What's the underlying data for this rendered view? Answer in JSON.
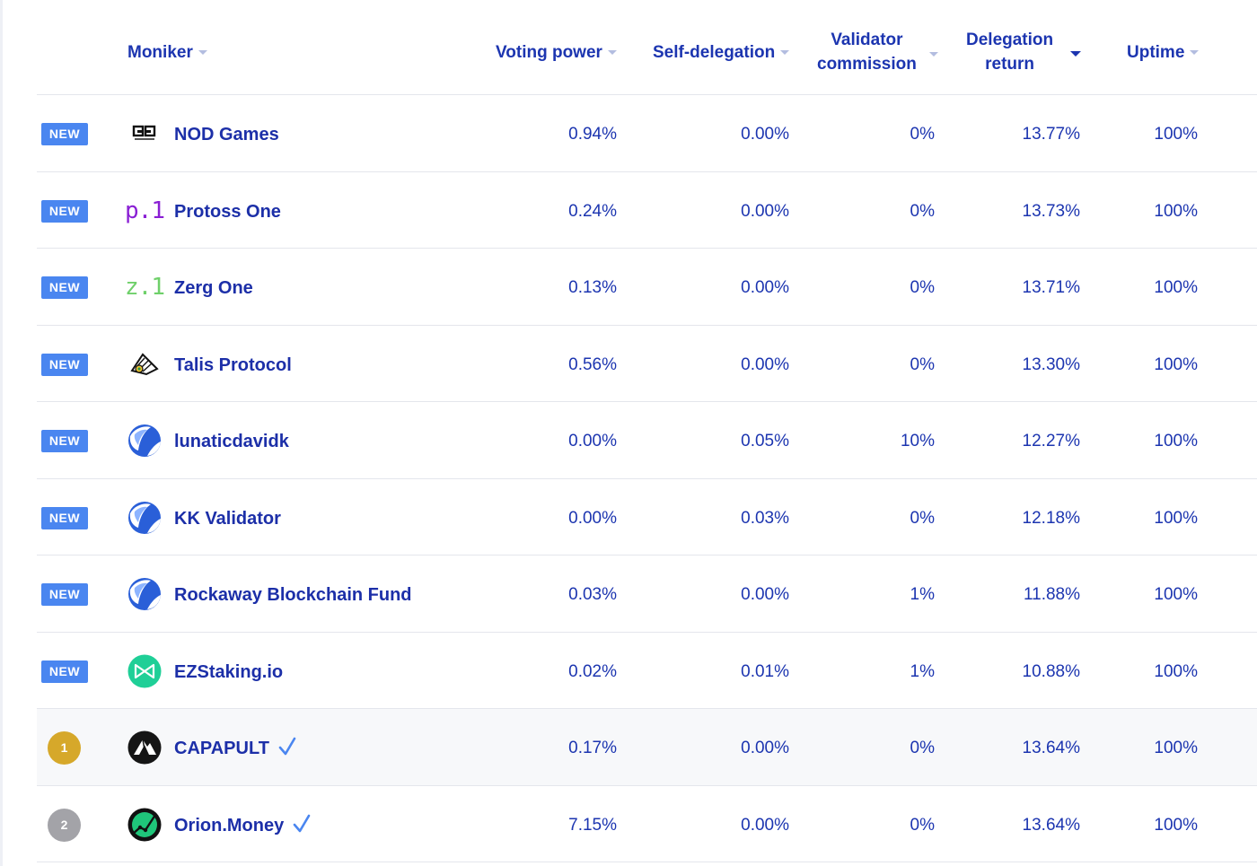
{
  "columns": {
    "moniker": "Moniker",
    "voting_power": "Voting power",
    "self_delegation": "Self-delegation",
    "validator_commission_1": "Validator",
    "validator_commission_2": "commission",
    "delegation_return_1": "Delegation",
    "delegation_return_2": "return",
    "uptime": "Uptime"
  },
  "colors": {
    "accent": "#1c35b0",
    "new_badge": "#4a86f0",
    "rank_gold": "#d6a82a",
    "rank_silver": "#a3a3a8",
    "verified": "#4a86f0"
  },
  "rows": [
    {
      "badge": "NEW",
      "icon": "nod-games-logo",
      "name": "NOD Games",
      "voting_power": "0.94%",
      "self_delegation": "0.00%",
      "commission": "0%",
      "delegation_return": "13.77%",
      "uptime": "100%"
    },
    {
      "badge": "NEW",
      "icon": "protoss-one-logo",
      "logo_text": "p.1",
      "name": "Protoss One",
      "voting_power": "0.24%",
      "self_delegation": "0.00%",
      "commission": "0%",
      "delegation_return": "13.73%",
      "uptime": "100%"
    },
    {
      "badge": "NEW",
      "icon": "zerg-one-logo",
      "logo_text": "z.1",
      "name": "Zerg One",
      "voting_power": "0.13%",
      "self_delegation": "0.00%",
      "commission": "0%",
      "delegation_return": "13.71%",
      "uptime": "100%"
    },
    {
      "badge": "NEW",
      "icon": "talis-protocol-logo",
      "name": "Talis Protocol",
      "voting_power": "0.56%",
      "self_delegation": "0.00%",
      "commission": "0%",
      "delegation_return": "13.30%",
      "uptime": "100%"
    },
    {
      "badge": "NEW",
      "icon": "terra-default-logo",
      "name": "lunaticdavidk",
      "voting_power": "0.00%",
      "self_delegation": "0.05%",
      "commission": "10%",
      "delegation_return": "12.27%",
      "uptime": "100%"
    },
    {
      "badge": "NEW",
      "icon": "terra-default-logo",
      "name": "KK Validator",
      "voting_power": "0.00%",
      "self_delegation": "0.03%",
      "commission": "0%",
      "delegation_return": "12.18%",
      "uptime": "100%"
    },
    {
      "badge": "NEW",
      "icon": "terra-default-logo",
      "name": "Rockaway Blockchain Fund",
      "voting_power": "0.03%",
      "self_delegation": "0.00%",
      "commission": "1%",
      "delegation_return": "11.88%",
      "uptime": "100%"
    },
    {
      "badge": "NEW",
      "icon": "ezstaking-logo",
      "name": "EZStaking.io",
      "voting_power": "0.02%",
      "self_delegation": "0.01%",
      "commission": "1%",
      "delegation_return": "10.88%",
      "uptime": "100%"
    },
    {
      "rank": "1",
      "icon": "capapult-logo",
      "name": "CAPAPULT",
      "verified": true,
      "voting_power": "0.17%",
      "self_delegation": "0.00%",
      "commission": "0%",
      "delegation_return": "13.64%",
      "uptime": "100%"
    },
    {
      "rank": "2",
      "icon": "orion-money-logo",
      "name": "Orion.Money",
      "verified": true,
      "voting_power": "7.15%",
      "self_delegation": "0.00%",
      "commission": "0%",
      "delegation_return": "13.64%",
      "uptime": "100%"
    }
  ]
}
